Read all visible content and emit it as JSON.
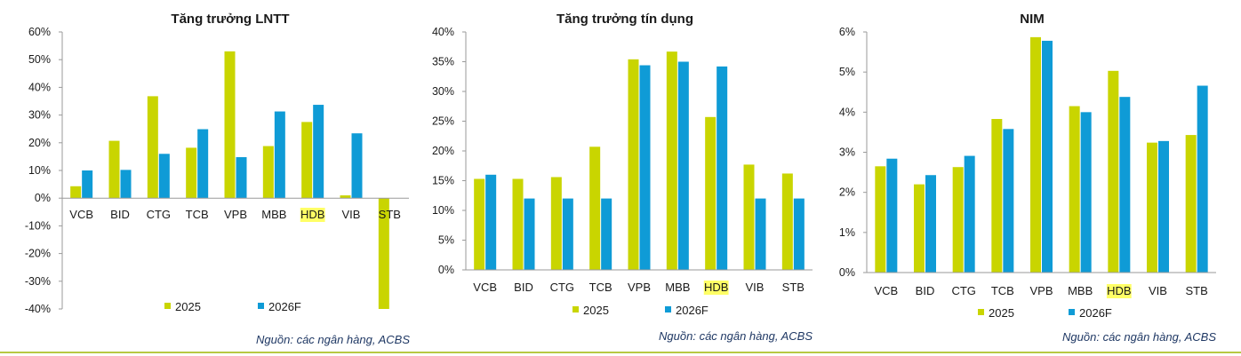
{
  "chart_data": [
    {
      "type": "bar",
      "title": "Tăng trưởng LNTT",
      "categories": [
        "VCB",
        "BID",
        "CTG",
        "TCB",
        "VPB",
        "MBB",
        "HDB",
        "VIB",
        "STB"
      ],
      "highlight_category": "HDB",
      "series": [
        {
          "name": "2025",
          "color": "#c9d500",
          "values": [
            4.3,
            20.7,
            36.8,
            18.2,
            53.0,
            18.8,
            27.5,
            1.0,
            -40.0
          ]
        },
        {
          "name": "2026F",
          "color": "#0f9bd6",
          "values": [
            10.0,
            10.2,
            16.0,
            24.9,
            14.8,
            31.3,
            33.7,
            23.4,
            null
          ]
        }
      ],
      "ylim": [
        -40,
        60
      ],
      "yticks": [
        "60%",
        "50%",
        "40%",
        "30%",
        "20%",
        "10%",
        "0%",
        "-10%",
        "-20%",
        "-30%",
        "-40%"
      ],
      "source": "Nguồn: các ngân hàng, ACBS"
    },
    {
      "type": "bar",
      "title": "Tăng trưởng tín dụng",
      "categories": [
        "VCB",
        "BID",
        "CTG",
        "TCB",
        "VPB",
        "MBB",
        "HDB",
        "VIB",
        "STB"
      ],
      "highlight_category": "HDB",
      "series": [
        {
          "name": "2025",
          "color": "#c9d500",
          "values": [
            15.3,
            15.3,
            15.6,
            20.7,
            35.4,
            36.7,
            25.7,
            17.7,
            16.2
          ]
        },
        {
          "name": "2026F",
          "color": "#0f9bd6",
          "values": [
            16.0,
            12.0,
            12.0,
            12.0,
            34.4,
            35.0,
            34.2,
            12.0,
            12.0
          ]
        }
      ],
      "ylim": [
        0,
        40
      ],
      "yticks": [
        "40%",
        "35%",
        "30%",
        "25%",
        "20%",
        "15%",
        "10%",
        "5%",
        "0%"
      ],
      "source": "Nguồn: các ngân hàng, ACBS"
    },
    {
      "type": "bar",
      "title": "NIM",
      "categories": [
        "VCB",
        "BID",
        "CTG",
        "TCB",
        "VPB",
        "MBB",
        "HDB",
        "VIB",
        "STB"
      ],
      "highlight_category": "HDB",
      "series": [
        {
          "name": "2025",
          "color": "#c9d500",
          "values": [
            2.65,
            2.2,
            2.63,
            3.83,
            5.87,
            4.15,
            5.03,
            3.24,
            3.43
          ]
        },
        {
          "name": "2026F",
          "color": "#0f9bd6",
          "values": [
            2.84,
            2.43,
            2.91,
            3.58,
            5.78,
            4.0,
            4.38,
            3.28,
            4.66
          ]
        }
      ],
      "ylim": [
        0,
        6
      ],
      "yticks": [
        "6%",
        "5%",
        "4%",
        "3%",
        "2%",
        "1%",
        "0%"
      ],
      "source": "Nguồn: các ngân hàng, ACBS"
    }
  ]
}
